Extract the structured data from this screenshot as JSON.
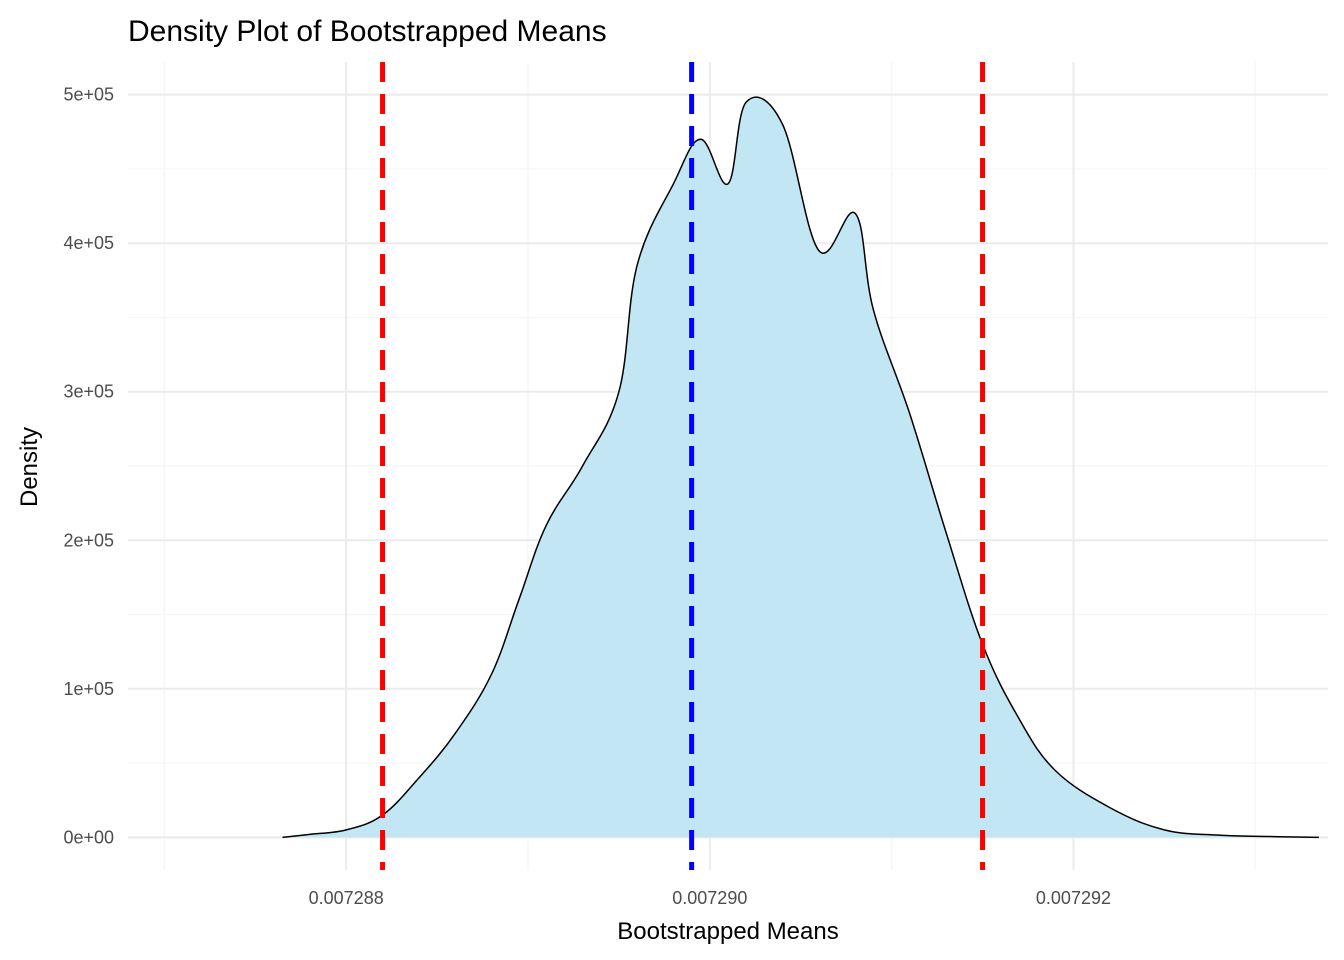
{
  "chart_data": {
    "type": "area",
    "title": "Density Plot of Bootstrapped Means",
    "xlabel": "Bootstrapped Means",
    "ylabel": "Density",
    "xlim": [
      0.0072868,
      0.0072934
    ],
    "ylim": [
      -22000,
      522000
    ],
    "x_ticks": [
      {
        "value": 0.007288,
        "label": "0.007288"
      },
      {
        "value": 0.00729,
        "label": "0.007290"
      },
      {
        "value": 0.007292,
        "label": "0.007292"
      }
    ],
    "x_minor_ticks": [
      0.007287,
      0.007289,
      0.007291,
      0.007293
    ],
    "y_ticks": [
      {
        "value": 0,
        "label": "0e+00"
      },
      {
        "value": 100000,
        "label": "1e+05"
      },
      {
        "value": 200000,
        "label": "2e+05"
      },
      {
        "value": 300000,
        "label": "3e+05"
      },
      {
        "value": 400000,
        "label": "4e+05"
      },
      {
        "value": 500000,
        "label": "5e+05"
      }
    ],
    "y_minor_ticks": [
      50000,
      150000,
      250000,
      350000,
      450000
    ],
    "grid": true,
    "colors": {
      "fill": "#c3e6f5",
      "outline": "#000000",
      "mean_line": "#0000ff",
      "ci_line": "#ff0000",
      "grid_major": "#ebebeb",
      "grid_minor": "#f5f5f5"
    },
    "series": [
      {
        "x": [
          0.00728765,
          0.0072878,
          0.007288,
          0.0072882,
          0.0072884,
          0.0072886,
          0.0072888,
          0.00728895,
          0.0072891,
          0.0072893,
          0.0072895,
          0.0072896,
          0.0072898,
          0.00728995,
          0.0072901,
          0.0072902,
          0.0072904,
          0.0072906,
          0.0072908,
          0.0072909,
          0.0072911,
          0.0072913,
          0.0072915,
          0.0072917,
          0.0072919,
          0.0072922,
          0.0072925,
          0.0072928,
          0.0072931,
          0.00729335
        ],
        "y": [
          0,
          2000,
          5000,
          15000,
          40000,
          70000,
          110000,
          160000,
          210000,
          250000,
          300000,
          385000,
          440000,
          470000,
          440000,
          495000,
          480000,
          395000,
          420000,
          355000,
          285000,
          205000,
          130000,
          80000,
          45000,
          20000,
          5000,
          1500,
          500,
          0
        ]
      }
    ],
    "vlines": [
      {
        "x": 0.0072882,
        "color": "#ff0000",
        "style": "dashed"
      },
      {
        "x": 0.0072899,
        "color": "#0000ff",
        "style": "dashed"
      },
      {
        "x": 0.0072915,
        "color": "#ff0000",
        "style": "dashed"
      }
    ]
  }
}
